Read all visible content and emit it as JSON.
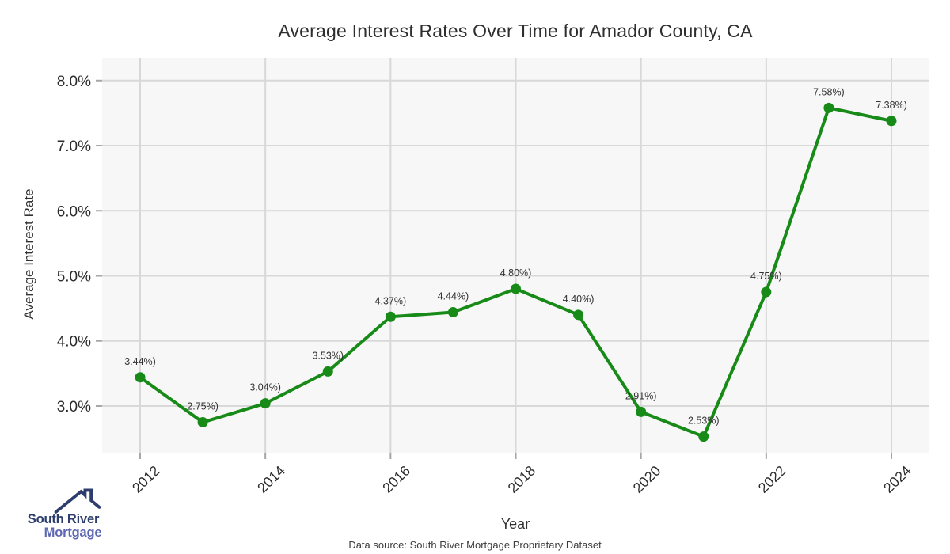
{
  "chart_data": {
    "type": "line",
    "title": "Average Interest Rates Over Time for Amador County, CA",
    "xlabel": "Year",
    "ylabel": "Average Interest Rate",
    "source_note": "Data source: South River Mortgage Proprietary Dataset",
    "x": [
      2012,
      2013,
      2014,
      2015,
      2016,
      2017,
      2018,
      2019,
      2020,
      2021,
      2022,
      2023,
      2024
    ],
    "values": [
      3.44,
      2.75,
      3.04,
      3.53,
      4.37,
      4.44,
      4.8,
      4.4,
      2.91,
      2.53,
      4.75,
      7.58,
      7.38
    ],
    "point_labels": [
      "3.44%)",
      "2.75%)",
      "3.04%)",
      "3.53%)",
      "4.37%)",
      "4.44%)",
      "4.80%)",
      "4.40%)",
      "2.91%)",
      "2.53%)",
      "4.75%)",
      "7.58%)",
      "7.38%)"
    ],
    "x_ticks": [
      2012,
      2014,
      2016,
      2018,
      2020,
      2022,
      2024
    ],
    "y_ticks": [
      {
        "value": 3,
        "label": "3.0%"
      },
      {
        "value": 4,
        "label": "4.0%"
      },
      {
        "value": 5,
        "label": "5.0%"
      },
      {
        "value": 6,
        "label": "6.0%"
      },
      {
        "value": 7,
        "label": "7.0%"
      },
      {
        "value": 8,
        "label": "8.0%"
      }
    ],
    "ylim": [
      2.27,
      8.35
    ],
    "grid": true,
    "legend": "none",
    "line_color": "#178a17",
    "marker_color": "#178a17",
    "plot_bg_color": "#f7f7f7",
    "grid_color": "#d8d8d8",
    "tick_color": "#a6a6a6",
    "tick_label_color": "#2b2b2b",
    "point_label_color": "#333333"
  },
  "logo": {
    "icon": "house-roof-icon",
    "line1": "South River",
    "line2": "Mortgage",
    "primary_color": "#2d3e6d",
    "secondary_color": "#5e68b2"
  }
}
